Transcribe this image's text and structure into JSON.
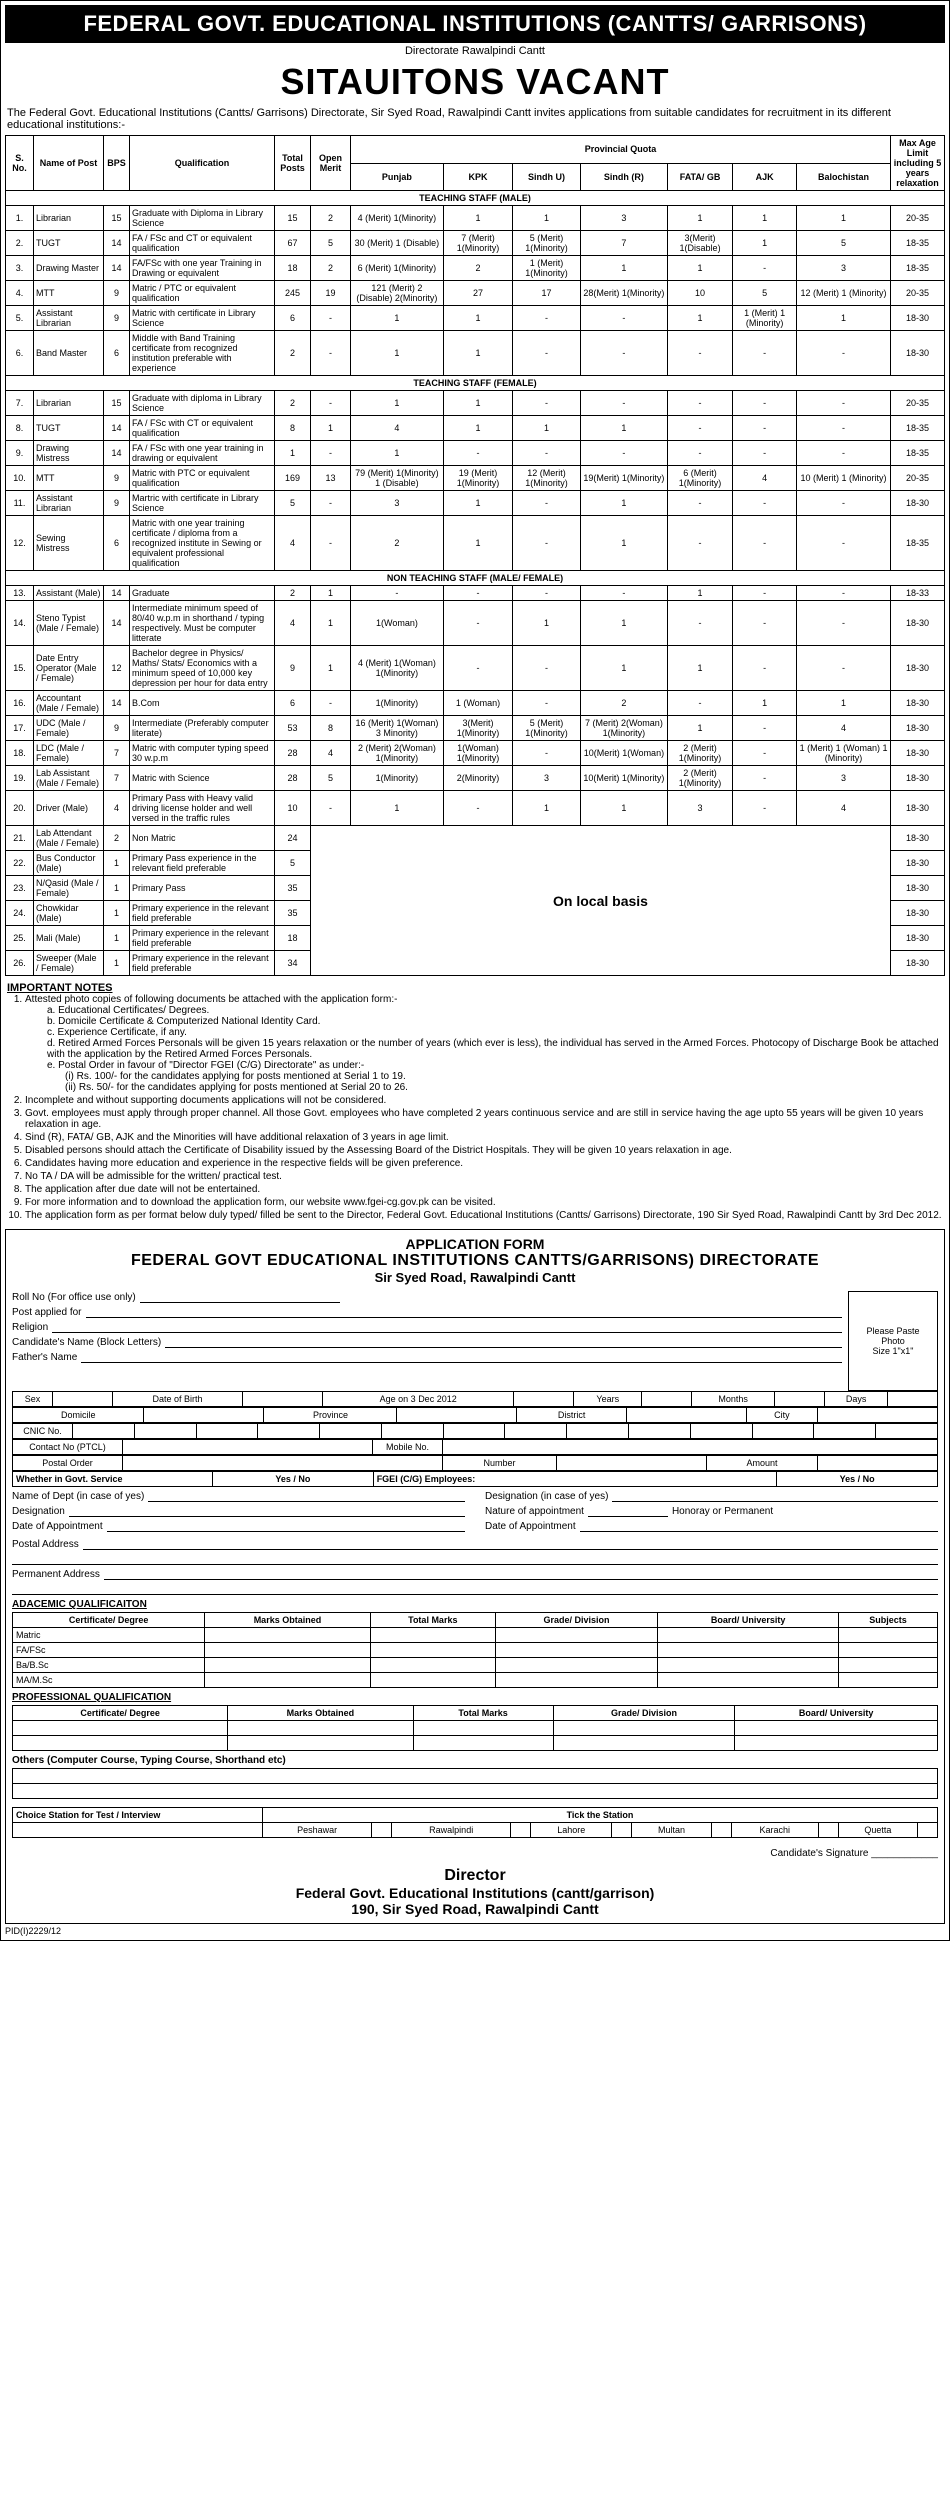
{
  "header": {
    "title": "FEDERAL GOVT. EDUCATIONAL INSTITUTIONS (CANTTS/ GARRISONS)",
    "sub": "Directorate Rawalpindi Cantt",
    "headline": "SITAUITONS VACANT",
    "intro": "The Federal Govt. Educational Institutions (Cantts/ Garrisons) Directorate, Sir Syed Road, Rawalpindi Cantt invites applications from suitable candidates for recruitment in its different educational institutions:-"
  },
  "table": {
    "headers": {
      "sno": "S. No.",
      "name": "Name of Post",
      "bps": "BPS",
      "qual": "Qualification",
      "total": "Total Posts",
      "pq": "Provincial Quota",
      "open": "Open Merit",
      "punjab": "Punjab",
      "kpk": "KPK",
      "sindhU": "Sindh U)",
      "sindhR": "Sindh (R)",
      "fata": "FATA/ GB",
      "ajk": "AJK",
      "bal": "Balochistan",
      "age": "Max Age Limit including 5 years relaxation"
    },
    "section1": "TEACHING STAFF (MALE)",
    "rows1": [
      {
        "n": "1.",
        "name": "Librarian",
        "bps": "15",
        "q": "Graduate with Diploma in Library Science",
        "t": "15",
        "om": "2",
        "pj": "4 (Merit) 1(Minority)",
        "kpk": "1",
        "su": "1",
        "sr": "3",
        "fg": "1",
        "ajk": "1",
        "bal": "1",
        "age": "20-35"
      },
      {
        "n": "2.",
        "name": "TUGT",
        "bps": "14",
        "q": "FA / FSc and CT or equivalent qualification",
        "t": "67",
        "om": "5",
        "pj": "30 (Merit) 1 (Disable)",
        "kpk": "7 (Merit) 1(Minority)",
        "su": "5 (Merit) 1(Minority)",
        "sr": "7",
        "fg": "3(Merit) 1(Disable)",
        "ajk": "1",
        "bal": "5",
        "age": "18-35"
      },
      {
        "n": "3.",
        "name": "Drawing Master",
        "bps": "14",
        "q": "FA/FSc with one year Training in Drawing or equivalent",
        "t": "18",
        "om": "2",
        "pj": "6 (Merit) 1(Minority)",
        "kpk": "2",
        "su": "1 (Merit) 1(Minority)",
        "sr": "1",
        "fg": "1",
        "ajk": "-",
        "bal": "3",
        "age": "18-35"
      },
      {
        "n": "4.",
        "name": "MTT",
        "bps": "9",
        "q": "Matric / PTC or equivalent qualification",
        "t": "245",
        "om": "19",
        "pj": "121 (Merit) 2 (Disable) 2(Minority)",
        "kpk": "27",
        "su": "17",
        "sr": "28(Merit) 1(Minority)",
        "fg": "10",
        "ajk": "5",
        "bal": "12 (Merit) 1 (Minority)",
        "age": "20-35"
      },
      {
        "n": "5.",
        "name": "Assistant Librarian",
        "bps": "9",
        "q": "Matric with certificate in Library Science",
        "t": "6",
        "om": "-",
        "pj": "1",
        "kpk": "1",
        "su": "-",
        "sr": "-",
        "fg": "1",
        "ajk": "1 (Merit) 1 (Minority)",
        "bal": "1",
        "age": "18-30"
      },
      {
        "n": "6.",
        "name": "Band Master",
        "bps": "6",
        "q": "Middle with Band Training certificate from recognized institution preferable with experience",
        "t": "2",
        "om": "-",
        "pj": "1",
        "kpk": "1",
        "su": "-",
        "sr": "-",
        "fg": "-",
        "ajk": "-",
        "bal": "-",
        "age": "18-30"
      }
    ],
    "section2": "TEACHING STAFF (FEMALE)",
    "rows2": [
      {
        "n": "7.",
        "name": "Librarian",
        "bps": "15",
        "q": "Graduate with diploma in Library Science",
        "t": "2",
        "om": "-",
        "pj": "1",
        "kpk": "1",
        "su": "-",
        "sr": "-",
        "fg": "-",
        "ajk": "-",
        "bal": "-",
        "age": "20-35"
      },
      {
        "n": "8.",
        "name": "TUGT",
        "bps": "14",
        "q": "FA / FSc with CT or equivalent qualification",
        "t": "8",
        "om": "1",
        "pj": "4",
        "kpk": "1",
        "su": "1",
        "sr": "1",
        "fg": "-",
        "ajk": "-",
        "bal": "-",
        "age": "18-35"
      },
      {
        "n": "9.",
        "name": "Drawing Mistress",
        "bps": "14",
        "q": "FA / FSc with one year training in drawing or equivalent",
        "t": "1",
        "om": "-",
        "pj": "1",
        "kpk": "-",
        "su": "-",
        "sr": "-",
        "fg": "-",
        "ajk": "-",
        "bal": "-",
        "age": "18-35"
      },
      {
        "n": "10.",
        "name": "MTT",
        "bps": "9",
        "q": "Matric with PTC or equivalent qualification",
        "t": "169",
        "om": "13",
        "pj": "79 (Merit) 1(Minority) 1 (Disable)",
        "kpk": "19 (Merit) 1(Minority)",
        "su": "12 (Merit) 1(Minority)",
        "sr": "19(Merit) 1(Minority)",
        "fg": "6 (Merit) 1(Minority)",
        "ajk": "4",
        "bal": "10 (Merit) 1 (Minority)",
        "age": "20-35"
      },
      {
        "n": "11.",
        "name": "Assistant Librarian",
        "bps": "9",
        "q": "Martric with certificate in Library Science",
        "t": "5",
        "om": "-",
        "pj": "3",
        "kpk": "1",
        "su": "-",
        "sr": "1",
        "fg": "-",
        "ajk": "-",
        "bal": "-",
        "age": "18-30"
      },
      {
        "n": "12.",
        "name": "Sewing Mistress",
        "bps": "6",
        "q": "Matric with one year training certificate / diploma from a recognized institute in Sewing or equivalent professional qualification",
        "t": "4",
        "om": "-",
        "pj": "2",
        "kpk": "1",
        "su": "-",
        "sr": "1",
        "fg": "-",
        "ajk": "-",
        "bal": "-",
        "age": "18-35"
      }
    ],
    "section3": "NON TEACHING STAFF (MALE/ FEMALE)",
    "rows3": [
      {
        "n": "13.",
        "name": "Assistant (Male)",
        "bps": "14",
        "q": "Graduate",
        "t": "2",
        "om": "1",
        "pj": "-",
        "kpk": "-",
        "su": "-",
        "sr": "-",
        "fg": "1",
        "ajk": "-",
        "bal": "-",
        "age": "18-33"
      },
      {
        "n": "14.",
        "name": "Steno Typist (Male / Female)",
        "bps": "14",
        "q": "Intermediate minimum speed of 80/40 w.p.m in shorthand / typing respectively. Must be computer litterate",
        "t": "4",
        "om": "1",
        "pj": "1(Woman)",
        "kpk": "-",
        "su": "1",
        "sr": "1",
        "fg": "-",
        "ajk": "-",
        "bal": "-",
        "age": "18-30"
      },
      {
        "n": "15.",
        "name": "Date Entry Operator (Male / Female)",
        "bps": "12",
        "q": "Bachelor degree in Physics/ Maths/ Stats/ Economics with a minimum speed of 10,000 key depression per hour for data entry",
        "t": "9",
        "om": "1",
        "pj": "4 (Merit) 1(Woman) 1(Minority)",
        "kpk": "-",
        "su": "-",
        "sr": "1",
        "fg": "1",
        "ajk": "-",
        "bal": "-",
        "age": "18-30"
      },
      {
        "n": "16.",
        "name": "Accountant (Male / Female)",
        "bps": "14",
        "q": "B.Com",
        "t": "6",
        "om": "-",
        "pj": "1(Minority)",
        "kpk": "1 (Woman)",
        "su": "-",
        "sr": "2",
        "fg": "-",
        "ajk": "1",
        "bal": "1",
        "age": "18-30"
      },
      {
        "n": "17.",
        "name": "UDC (Male / Female)",
        "bps": "9",
        "q": "Intermediate (Preferably computer literate)",
        "t": "53",
        "om": "8",
        "pj": "16 (Merit) 1(Woman) 3 Minority)",
        "kpk": "3(Merit) 1(Minority)",
        "su": "5 (Merit) 1(Minority)",
        "sr": "7 (Merit) 2(Woman) 1(Minority)",
        "fg": "1",
        "ajk": "-",
        "bal": "4",
        "age": "18-30"
      },
      {
        "n": "18.",
        "name": "LDC (Male / Female)",
        "bps": "7",
        "q": "Matric with computer typing speed 30 w.p.m",
        "t": "28",
        "om": "4",
        "pj": "2 (Merit) 2(Woman) 1(Minority)",
        "kpk": "1(Woman) 1(Minority)",
        "su": "-",
        "sr": "10(Merit) 1(Woman)",
        "fg": "2 (Merit) 1(Minority)",
        "ajk": "-",
        "bal": "1 (Merit) 1 (Woman) 1 (Minority)",
        "age": "18-30"
      },
      {
        "n": "19.",
        "name": "Lab Assistant (Male / Female)",
        "bps": "7",
        "q": "Matric with Science",
        "t": "28",
        "om": "5",
        "pj": "1(Minority)",
        "kpk": "2(Minority)",
        "su": "3",
        "sr": "10(Merit) 1(Minority)",
        "fg": "2 (Merit) 1(Minority)",
        "ajk": "-",
        "bal": "3",
        "age": "18-30"
      },
      {
        "n": "20.",
        "name": "Driver (Male)",
        "bps": "4",
        "q": "Primary Pass with Heavy valid driving license holder and well versed in the traffic rules",
        "t": "10",
        "om": "-",
        "pj": "1",
        "kpk": "-",
        "su": "1",
        "sr": "1",
        "fg": "3",
        "ajk": "-",
        "bal": "4",
        "age": "18-30"
      }
    ],
    "localLabel": "On local basis",
    "rows4": [
      {
        "n": "21.",
        "name": "Lab Attendant (Male / Female)",
        "bps": "2",
        "q": "Non Matric",
        "t": "24",
        "age": "18-30"
      },
      {
        "n": "22.",
        "name": "Bus Conductor (Male)",
        "bps": "1",
        "q": "Primary Pass experience in the relevant field preferable",
        "t": "5",
        "age": "18-30"
      },
      {
        "n": "23.",
        "name": "N/Qasid (Male / Female)",
        "bps": "1",
        "q": "Primary Pass",
        "t": "35",
        "age": "18-30"
      },
      {
        "n": "24.",
        "name": "Chowkidar (Male)",
        "bps": "1",
        "q": "Primary experience in the relevant field preferable",
        "t": "35",
        "age": "18-30"
      },
      {
        "n": "25.",
        "name": "Mali (Male)",
        "bps": "1",
        "q": "Primary experience in the relevant field preferable",
        "t": "18",
        "age": "18-30"
      },
      {
        "n": "26.",
        "name": "Sweeper (Male / Female)",
        "bps": "1",
        "q": "Primary experience in the relevant field preferable",
        "t": "34",
        "age": "18-30"
      }
    ]
  },
  "notes": {
    "title": "IMPORTANT NOTES",
    "items": [
      "Attested photo copies of following documents be attached with the application form:-",
      "Incomplete and without supporting documents applications will not be considered.",
      "Govt. employees must apply through proper channel. All those Govt. employees who have completed 2 years continuous service and are still in service having the age upto 55 years will be given 10 years relaxation in age.",
      "Sind (R), FATA/ GB, AJK and the Minorities will have additional relaxation of 3 years in age limit.",
      "Disabled persons should attach the Certificate of Disability issued by the Assessing Board of the District Hospitals. They will be given 10 years relaxation in age.",
      "Candidates having more education and experience in the respective fields will be given preference.",
      "No TA / DA will be admissible for the written/ practical test.",
      "The application after due date will not be entertained.",
      "For more information and to download the application form, our website www.fgei-cg.gov.pk can be visited.",
      "The application form as per format below duly typed/ filled be sent to the Director, Federal Govt. Educational Institutions (Cantts/ Garrisons) Directorate, 190 Sir Syed Road, Rawalpindi Cantt by 3rd Dec 2012."
    ],
    "sub1": [
      "a. Educational Certificates/ Degrees.",
      "b. Domicile Certificate & Computerized National Identity Card.",
      "c. Experience Certificate, if any.",
      "d. Retired Armed Forces Personals will be given 15 years relaxation or the number of years (which ever is less), the individual has served in the Armed Forces. Photocopy of Discharge Book be attached with the application by the Retired Armed Forces Personals.",
      "e. Postal Order in favour of \"Director FGEI (C/G) Directorate\" as under:-"
    ],
    "sub2": [
      "(i) Rs. 100/- for the candidates applying for posts mentioned at Serial 1 to 19.",
      "(ii) Rs. 50/- for the candidates applying for posts mentioned at Serial 20 to 26."
    ]
  },
  "app": {
    "h1": "APPLICATION FORM",
    "h2": "FEDERAL GOVT EDUCATIONAL INSTITUTIONS CANTTS/GARRISONS) DIRECTORATE",
    "h3": "Sir Syed Road, Rawalpindi Cantt",
    "photo1": "Please Paste",
    "photo2": "Photo",
    "photo3": "Size 1\"x1\"",
    "labels": {
      "roll": "Roll No (For office use only)",
      "post": "Post applied for",
      "religion": "Religion",
      "cand": "Candidate's Name (Block Letters)",
      "father": "Father's Name",
      "sex": "Sex",
      "dob": "Date of Birth",
      "ageon": "Age on 3 Dec 2012",
      "years": "Years",
      "months": "Months",
      "days": "Days",
      "dom": "Domicile",
      "prov": "Province",
      "dist": "District",
      "city": "City",
      "cnic": "CNIC No.",
      "contact": "Contact No (PTCL)",
      "mobile": "Mobile No.",
      "postal": "Postal Order",
      "number": "Number",
      "amount": "Amount",
      "govserv": "Whether in Govt. Service",
      "yesno": "Yes / No",
      "fgei": "FGEI (C/G) Employees:",
      "dept": "Name of Dept (in case of yes)",
      "desig2": "Designation (in case of yes)",
      "desig": "Designation",
      "nature": "Nature of appointment",
      "honperm": "Honoray or Permanent",
      "doa": "Date of Appointment",
      "doa2": "Date of Appointment",
      "paddr": "Postal Address",
      "permaddr": "Permanent Address",
      "acad": "ADACEMIC QUALIFICAITON",
      "cert": "Certificate/ Degree",
      "marks": "Marks Obtained",
      "totmarks": "Total Marks",
      "grade": "Grade/ Division",
      "board": "Board/ University",
      "subjects": "Subjects",
      "matric": "Matric",
      "fafsc": "FA/FSc",
      "babsc": "Ba/B.Sc",
      "mamsc": "MA/M.Sc",
      "prof": "PROFESSIONAL QUALIFICATION",
      "others": "Others (Computer Course, Typing Course, Shorthand etc)",
      "choice": "Choice Station for Test / Interview",
      "tick": "Tick the Station",
      "pesh": "Peshawar",
      "rwp": "Rawalpindi",
      "lhr": "Lahore",
      "mul": "Multan",
      "khi": "Karachi",
      "quetta": "Quetta",
      "sig": "Candidate's Signature"
    }
  },
  "footer": {
    "director": "Director",
    "inst": "Federal Govt. Educational Institutions (cantt/garrison)",
    "addr": "190, Sir Syed Road, Rawalpindi Cantt",
    "pid": "PID(I)2229/12"
  }
}
